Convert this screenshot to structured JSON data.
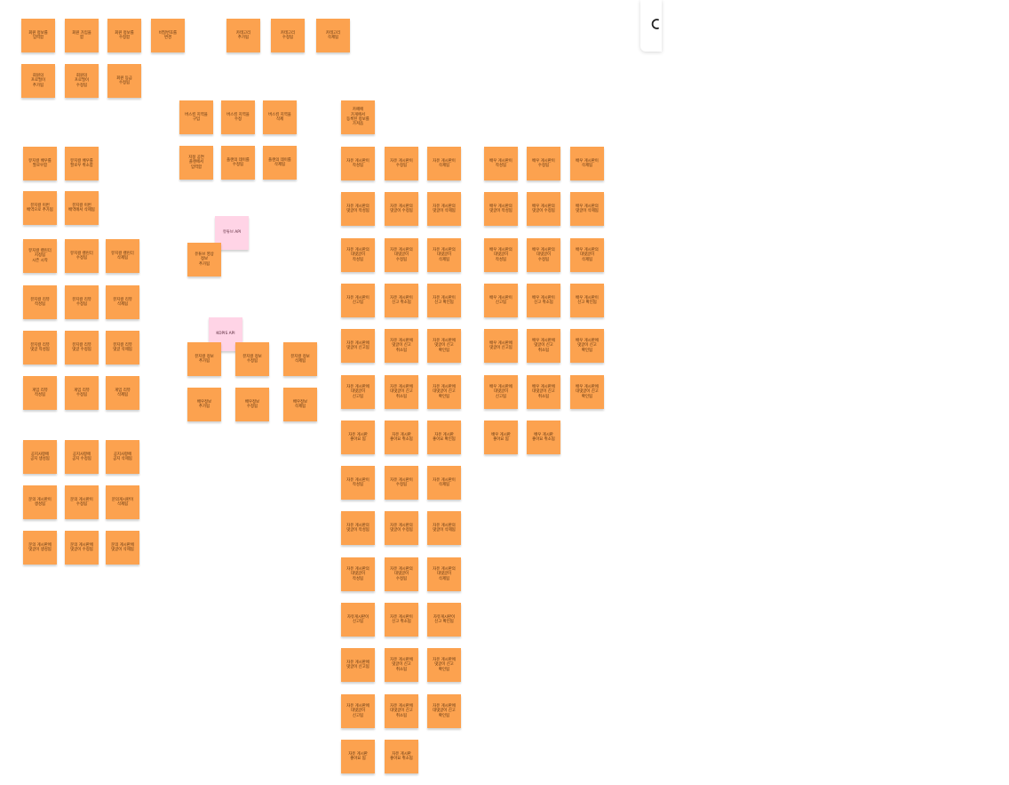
{
  "colors": {
    "board_bg": "#ffffff",
    "sticky_orange": "#fca24f",
    "sticky_pink": "#ffd4e6"
  },
  "toolbar": {
    "search_icon": "search-icon"
  },
  "notes": [
    {
      "id": "n1",
      "text": "회원 정보를\n입력함",
      "color": "orange"
    },
    {
      "id": "n2",
      "text": "회원 가입을\n함",
      "color": "orange"
    },
    {
      "id": "n3",
      "text": "회원 정보를\n수정함",
      "color": "orange"
    },
    {
      "id": "n4",
      "text": "비밀번호를\n변경",
      "color": "orange"
    },
    {
      "id": "n5",
      "text": "카테고리\n추가됨",
      "color": "orange"
    },
    {
      "id": "n6",
      "text": "카테고리\n수정됨",
      "color": "orange"
    },
    {
      "id": "n7",
      "text": "카테고리\n삭제됨",
      "color": "orange"
    },
    {
      "id": "n8",
      "text": "회원의\n프로필이\n추가됨",
      "color": "orange"
    },
    {
      "id": "n9",
      "text": "회원의\n프로필이\n수정됨",
      "color": "orange"
    },
    {
      "id": "n10",
      "text": "회원 등급\n수정됨",
      "color": "orange"
    },
    {
      "id": "n11",
      "text": "버스킹 지역을\n구입",
      "color": "orange"
    },
    {
      "id": "n12",
      "text": "버스킹 지역을\n수정",
      "color": "orange"
    },
    {
      "id": "n13",
      "text": "버스킹 지역을\n삭제",
      "color": "orange"
    },
    {
      "id": "n14",
      "text": "카페에\n가게에서\n등록된 정보를\n가져옴",
      "color": "orange"
    },
    {
      "id": "n15",
      "text": "지정 공연\n플랜에서\n입력함",
      "color": "orange"
    },
    {
      "id": "n16",
      "text": "플랜의 데이를\n수정됨",
      "color": "orange"
    },
    {
      "id": "n17",
      "text": "플랜의 데이를\n삭제됨",
      "color": "orange"
    },
    {
      "id": "n18",
      "text": "뮤지컬 배우를\n팔로우함",
      "color": "orange"
    },
    {
      "id": "n19",
      "text": "뮤지컬 배우를\n팔로우 취소함",
      "color": "orange"
    },
    {
      "id": "n20",
      "text": "뮤지컬 이번\n배역으로 추가됨",
      "color": "orange"
    },
    {
      "id": "n21",
      "text": "뮤지컬 이번\n배역에서 삭제됨",
      "color": "orange"
    },
    {
      "id": "n22",
      "text": "뮤지컬 캘린더\n지정됨\n시즌 시작",
      "color": "orange"
    },
    {
      "id": "n23",
      "text": "뮤지컬 캘린더\n수정됨",
      "color": "orange"
    },
    {
      "id": "n24",
      "text": "뮤지컬 캘린더\n삭제됨",
      "color": "orange"
    },
    {
      "id": "n25",
      "text": "뮤지컬 리뷰\n작성됨",
      "color": "orange"
    },
    {
      "id": "n26",
      "text": "뮤지컬 리뷰\n수정됨",
      "color": "orange"
    },
    {
      "id": "n27",
      "text": "뮤지컬 리뷰\n삭제됨",
      "color": "orange"
    },
    {
      "id": "n28",
      "text": "뮤지컬 리뷰\n댓글 작성됨",
      "color": "orange"
    },
    {
      "id": "n29",
      "text": "뮤지컬 리뷰\n댓글 수정됨",
      "color": "orange"
    },
    {
      "id": "n30",
      "text": "뮤지컬 리뷰\n댓글 삭제됨",
      "color": "orange"
    },
    {
      "id": "n31",
      "text": "게임 리뷰\n작성됨",
      "color": "orange"
    },
    {
      "id": "n32",
      "text": "게임 리뷰\n수정됨",
      "color": "orange"
    },
    {
      "id": "n33",
      "text": "게임 리뷰\n삭제됨",
      "color": "orange"
    },
    {
      "id": "p1",
      "text": "유튜브 API",
      "color": "pink"
    },
    {
      "id": "n34",
      "text": "유튜브 영상\n정보\n추가됨",
      "color": "orange"
    },
    {
      "id": "p2",
      "text": "KOPIS API",
      "color": "pink"
    },
    {
      "id": "n35",
      "text": "뮤지컬 정보\n추가됨",
      "color": "orange"
    },
    {
      "id": "n36",
      "text": "뮤지컬 정보\n수정됨",
      "color": "orange"
    },
    {
      "id": "n37",
      "text": "뮤지컬 정보\n삭제됨",
      "color": "orange"
    },
    {
      "id": "n38",
      "text": "배우정보\n추가됨",
      "color": "orange"
    },
    {
      "id": "n39",
      "text": "배우정보\n수정됨",
      "color": "orange"
    },
    {
      "id": "n40",
      "text": "배우정보\n삭제됨",
      "color": "orange"
    },
    {
      "id": "n41",
      "text": "공지사항에\n공지 생성됨",
      "color": "orange"
    },
    {
      "id": "n42",
      "text": "공지사항에\n공지 수정됨",
      "color": "orange"
    },
    {
      "id": "n43",
      "text": "공지사항에\n공지 삭제됨",
      "color": "orange"
    },
    {
      "id": "n44",
      "text": "문의 게시판이\n생성됨",
      "color": "orange"
    },
    {
      "id": "n45",
      "text": "문의 게시판이\n수정됨",
      "color": "orange"
    },
    {
      "id": "n46",
      "text": "문의게시판이\n삭제됨",
      "color": "orange"
    },
    {
      "id": "n47",
      "text": "문의 게시판에\n댓글이 생성됨",
      "color": "orange"
    },
    {
      "id": "n48",
      "text": "문의 게시판에\n댓글이 수정됨",
      "color": "orange"
    },
    {
      "id": "n49",
      "text": "문의 게시판에\n댓글이 삭제됨",
      "color": "orange"
    },
    {
      "id": "c1",
      "text": "자유 게시판이\n작성됨",
      "color": "orange"
    },
    {
      "id": "c2",
      "text": "자유 게시판이\n수정됨",
      "color": "orange"
    },
    {
      "id": "c3",
      "text": "자유 게시판이\n삭제됨",
      "color": "orange"
    },
    {
      "id": "c4",
      "text": "자유 게시판의\n댓글이 작성됨",
      "color": "orange"
    },
    {
      "id": "c5",
      "text": "자유 게시판의\n댓글이 수정됨",
      "color": "orange"
    },
    {
      "id": "c6",
      "text": "자유 게시판의\n댓글이 삭제됨",
      "color": "orange"
    },
    {
      "id": "c7",
      "text": "자유 게시판의\n대댓글이\n작성됨",
      "color": "orange"
    },
    {
      "id": "c8",
      "text": "자유 게시판의\n대댓글이\n수정됨",
      "color": "orange"
    },
    {
      "id": "c9",
      "text": "자유 게시판의\n대댓글이\n삭제됨",
      "color": "orange"
    },
    {
      "id": "c10",
      "text": "자유 게시판이\n신고됨",
      "color": "orange"
    },
    {
      "id": "c11",
      "text": "자유 게시판이\n신고 취소됨",
      "color": "orange"
    },
    {
      "id": "c12",
      "text": "자유 게시판이\n신고 확인됨",
      "color": "orange"
    },
    {
      "id": "c13",
      "text": "자유 게시판에\n댓글이 신고됨",
      "color": "orange"
    },
    {
      "id": "c14",
      "text": "자유 게시판에\n댓글이 신고\n취소됨",
      "color": "orange"
    },
    {
      "id": "c15",
      "text": "자유 게시판에\n댓글이 신고\n확인됨",
      "color": "orange"
    },
    {
      "id": "c16",
      "text": "자유 게시판에\n대댓글이\n신고됨",
      "color": "orange"
    },
    {
      "id": "c17",
      "text": "자유 게시판에\n대댓글이 신고\n취소됨",
      "color": "orange"
    },
    {
      "id": "c18",
      "text": "자유 게시판에\n대댓글이 신고\n확인됨",
      "color": "orange"
    },
    {
      "id": "c19",
      "text": "자유 게시판\n좋아요 됨",
      "color": "orange"
    },
    {
      "id": "c20",
      "text": "자유 게시판\n좋아요 취소됨",
      "color": "orange"
    },
    {
      "id": "c21",
      "text": "자유 게시판\n좋아요 확인됨",
      "color": "orange"
    },
    {
      "id": "c22",
      "text": "자유 게시판이\n작성됨",
      "color": "orange"
    },
    {
      "id": "c23",
      "text": "자유 게시판이\n수정됨",
      "color": "orange"
    },
    {
      "id": "c24",
      "text": "자유 게시판이\n삭제됨",
      "color": "orange"
    },
    {
      "id": "c25",
      "text": "자유 게시판의\n댓글이 작성됨",
      "color": "orange"
    },
    {
      "id": "c26",
      "text": "자유 게시판의\n댓글이 수정됨",
      "color": "orange"
    },
    {
      "id": "c27",
      "text": "자유 게시판의\n댓글이 삭제됨",
      "color": "orange"
    },
    {
      "id": "c28",
      "text": "자유 게시판의\n대댓글이\n작성됨",
      "color": "orange"
    },
    {
      "id": "c29",
      "text": "자유 게시판의\n대댓글이\n수정됨",
      "color": "orange"
    },
    {
      "id": "c30",
      "text": "자유 게시판의\n대댓글이\n삭제됨",
      "color": "orange"
    },
    {
      "id": "c31",
      "text": "자유게시판이\n신고됨",
      "color": "orange"
    },
    {
      "id": "c32",
      "text": "자유 게시판이\n신고 취소됨",
      "color": "orange"
    },
    {
      "id": "c33",
      "text": "자유게시판이\n신고 확인됨",
      "color": "orange"
    },
    {
      "id": "c34",
      "text": "자유 게시판에\n댓글이 신고됨",
      "color": "orange"
    },
    {
      "id": "c35",
      "text": "자유 게시판에\n댓글이 신고\n취소됨",
      "color": "orange"
    },
    {
      "id": "c36",
      "text": "자유 게시판에\n댓글이 신고\n확인됨",
      "color": "orange"
    },
    {
      "id": "c37",
      "text": "자유 게시판에\n대댓글이\n신고됨",
      "color": "orange"
    },
    {
      "id": "c38",
      "text": "자유 게시판에\n대댓글이 신고\n취소됨",
      "color": "orange"
    },
    {
      "id": "c39",
      "text": "자유 게시판에\n대댓글이 신고\n확인됨",
      "color": "orange"
    },
    {
      "id": "c40",
      "text": "자유 게시판\n좋아요 됨",
      "color": "orange"
    },
    {
      "id": "c41",
      "text": "자유 게시판\n좋아요 취소됨",
      "color": "orange"
    },
    {
      "id": "d1",
      "text": "배우 게시판이\n작성됨",
      "color": "orange"
    },
    {
      "id": "d2",
      "text": "배우 게시판이\n수정됨",
      "color": "orange"
    },
    {
      "id": "d3",
      "text": "배우 게시판이\n삭제됨",
      "color": "orange"
    },
    {
      "id": "d4",
      "text": "배우 게시판의\n댓글이 작성됨",
      "color": "orange"
    },
    {
      "id": "d5",
      "text": "배우 게시판의\n댓글이 수정됨",
      "color": "orange"
    },
    {
      "id": "d6",
      "text": "배우 게시판의\n댓글이 삭제됨",
      "color": "orange"
    },
    {
      "id": "d7",
      "text": "배우 게시판의\n대댓글이\n작성됨",
      "color": "orange"
    },
    {
      "id": "d8",
      "text": "배우 게시판의\n대댓글이\n수정됨",
      "color": "orange"
    },
    {
      "id": "d9",
      "text": "배우 게시판의\n대댓글이\n삭제됨",
      "color": "orange"
    },
    {
      "id": "d10",
      "text": "배우 게시판이\n신고됨",
      "color": "orange"
    },
    {
      "id": "d11",
      "text": "배우 게시판이\n신고 취소됨",
      "color": "orange"
    },
    {
      "id": "d12",
      "text": "배우 게시판이\n신고 확인됨",
      "color": "orange"
    },
    {
      "id": "d13",
      "text": "배우 게시판에\n댓글이 신고됨",
      "color": "orange"
    },
    {
      "id": "d14",
      "text": "배우 게시판에\n댓글이 신고\n취소됨",
      "color": "orange"
    },
    {
      "id": "d15",
      "text": "배우 게시판에\n댓글이 신고\n확인됨",
      "color": "orange"
    },
    {
      "id": "d16",
      "text": "배우 게시판에\n대댓글이\n신고됨",
      "color": "orange"
    },
    {
      "id": "d17",
      "text": "배우 게시판에\n대댓글이 신고\n취소됨",
      "color": "orange"
    },
    {
      "id": "d18",
      "text": "배우 게시판에\n대댓글이 신고\n확인됨",
      "color": "orange"
    },
    {
      "id": "d19",
      "text": "배우 게시판\n좋아요 됨",
      "color": "orange"
    },
    {
      "id": "d20",
      "text": "배우 게시판\n좋아요 취소됨",
      "color": "orange"
    }
  ]
}
